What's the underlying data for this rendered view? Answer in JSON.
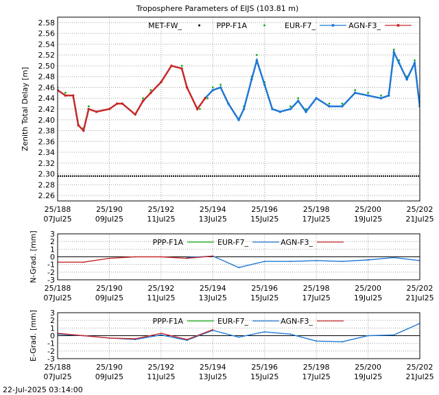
{
  "title": "Troposphere Parameters of EIJS (103.81 m)",
  "footer": "22-Jul-2025 03:14:00",
  "x_ticks": [
    {
      "top": "25/188",
      "bottom": "07Jul25"
    },
    {
      "top": "25/190",
      "bottom": "09Jul25"
    },
    {
      "top": "25/192",
      "bottom": "11Jul25"
    },
    {
      "top": "25/194",
      "bottom": "13Jul25"
    },
    {
      "top": "25/196",
      "bottom": "15Jul25"
    },
    {
      "top": "25/198",
      "bottom": "17Jul25"
    },
    {
      "top": "25/200",
      "bottom": "19Jul25"
    },
    {
      "top": "25/202",
      "bottom": "21Jul25"
    }
  ],
  "colors": {
    "MET-FW_": "#000000",
    "PPP-F1A": "#11aa11",
    "EUR-F7_": "#1f77d4",
    "AGN-F3_": "#c62828",
    "zero_line": "#000000"
  },
  "chart_data": [
    {
      "type": "line",
      "id": "ztd",
      "ylabel": "Zenith Total Delay [m]",
      "xlim": [
        188,
        202
      ],
      "ylim": [
        2.25,
        2.59
      ],
      "yticks": [
        2.26,
        2.28,
        2.3,
        2.32,
        2.34,
        2.36,
        2.38,
        2.4,
        2.42,
        2.44,
        2.46,
        2.48,
        2.5,
        2.52,
        2.54,
        2.56,
        2.58
      ],
      "grid": true,
      "legend": "top",
      "series": [
        {
          "name": "MET-FW_",
          "style": "dots",
          "x": [
            188,
            189,
            190,
            191,
            192,
            193,
            194,
            195,
            196,
            197,
            198,
            199,
            200,
            201,
            202
          ],
          "y": [
            2.296,
            2.296,
            2.296,
            2.296,
            2.296,
            2.296,
            2.296,
            2.296,
            2.296,
            2.296,
            2.296,
            2.296,
            2.296,
            2.296,
            2.296
          ]
        },
        {
          "name": "PPP-F1A",
          "style": "dots",
          "x": [
            188,
            188.3,
            188.6,
            188.8,
            189,
            189.2,
            189.5,
            190,
            190.3,
            190.5,
            191,
            191.3,
            191.6,
            192,
            192.4,
            192.8,
            193,
            193.5,
            193.8,
            194,
            194.3,
            194.6,
            195,
            195.2,
            195.5,
            195.7,
            196,
            196.3,
            196.6,
            197,
            197.3,
            197.6,
            198,
            198.5,
            199,
            199.5,
            200,
            200.5,
            200.8,
            201,
            201.2,
            201.5,
            201.8,
            202
          ],
          "y": [
            2.46,
            2.45,
            2.445,
            2.39,
            2.385,
            2.425,
            2.415,
            2.42,
            2.43,
            2.43,
            2.41,
            2.44,
            2.455,
            2.47,
            2.5,
            2.5,
            2.46,
            2.42,
            2.44,
            2.46,
            2.465,
            2.43,
            2.4,
            2.425,
            2.48,
            2.52,
            2.47,
            2.42,
            2.415,
            2.425,
            2.44,
            2.42,
            2.44,
            2.43,
            2.43,
            2.455,
            2.45,
            2.445,
            2.45,
            2.53,
            2.51,
            2.48,
            2.51,
            2.43
          ]
        },
        {
          "name": "EUR-F7_",
          "style": "line",
          "x": [
            193.7,
            194,
            194.3,
            194.6,
            195,
            195.2,
            195.5,
            195.7,
            196,
            196.3,
            196.6,
            197,
            197.3,
            197.6,
            198,
            198.5,
            199,
            199.5,
            200,
            200.5,
            200.8,
            201,
            201.2,
            201.5,
            201.8,
            202
          ],
          "y": [
            2.44,
            2.455,
            2.46,
            2.43,
            2.4,
            2.42,
            2.475,
            2.51,
            2.465,
            2.42,
            2.415,
            2.42,
            2.435,
            2.415,
            2.44,
            2.425,
            2.425,
            2.45,
            2.445,
            2.44,
            2.445,
            2.525,
            2.505,
            2.475,
            2.505,
            2.425
          ]
        },
        {
          "name": "AGN-F3_",
          "style": "line",
          "x": [
            188,
            188.3,
            188.6,
            188.8,
            189,
            189.2,
            189.5,
            190,
            190.3,
            190.5,
            191,
            191.3,
            191.6,
            192,
            192.4,
            192.8,
            193,
            193.4,
            193.7
          ],
          "y": [
            2.455,
            2.445,
            2.445,
            2.39,
            2.38,
            2.42,
            2.415,
            2.42,
            2.43,
            2.43,
            2.41,
            2.435,
            2.45,
            2.47,
            2.5,
            2.495,
            2.46,
            2.42,
            2.44
          ]
        }
      ]
    },
    {
      "type": "line",
      "id": "ngrad",
      "ylabel": "N-Grad. [mm]",
      "xlim": [
        188,
        202
      ],
      "ylim": [
        -3,
        3
      ],
      "yticks": [
        -3,
        -2,
        -1,
        0,
        1,
        2,
        3
      ],
      "grid": true,
      "legend": "top",
      "series": [
        {
          "name": "PPP-F1A",
          "style": "line",
          "x": [],
          "y": []
        },
        {
          "name": "EUR-F7_",
          "style": "line",
          "x": [
            193,
            194,
            195,
            196,
            197,
            198,
            199,
            200,
            201,
            202
          ],
          "y": [
            -0.1,
            0.1,
            -1.4,
            -0.6,
            -0.6,
            -0.5,
            -0.6,
            -0.4,
            -0.1,
            -0.5
          ]
        },
        {
          "name": "AGN-F3_",
          "style": "line",
          "x": [
            188,
            189,
            190,
            191,
            192,
            193,
            194
          ],
          "y": [
            -0.7,
            -0.7,
            -0.2,
            0.0,
            0.0,
            -0.2,
            0.1
          ]
        }
      ]
    },
    {
      "type": "line",
      "id": "egrad",
      "ylabel": "E-Grad. [mm]",
      "xlim": [
        188,
        202
      ],
      "ylim": [
        -3,
        3
      ],
      "yticks": [
        -3,
        -2,
        -1,
        0,
        1,
        2,
        3
      ],
      "grid": true,
      "legend": "top",
      "series": [
        {
          "name": "PPP-F1A",
          "style": "line",
          "x": [],
          "y": []
        },
        {
          "name": "EUR-F7_",
          "style": "line",
          "x": [
            188,
            189,
            190,
            191,
            192,
            193,
            194,
            195,
            196,
            197,
            198,
            199,
            200,
            201,
            202
          ],
          "y": [
            0.2,
            0.0,
            -0.3,
            -0.5,
            0.1,
            -0.6,
            0.7,
            -0.2,
            0.5,
            0.2,
            -0.7,
            -0.8,
            0.0,
            0.1,
            1.6
          ]
        },
        {
          "name": "AGN-F3_",
          "style": "line",
          "x": [
            188,
            189,
            190,
            191,
            192,
            193,
            194
          ],
          "y": [
            0.3,
            0.0,
            -0.3,
            -0.4,
            0.3,
            -0.5,
            0.8
          ]
        }
      ]
    }
  ]
}
